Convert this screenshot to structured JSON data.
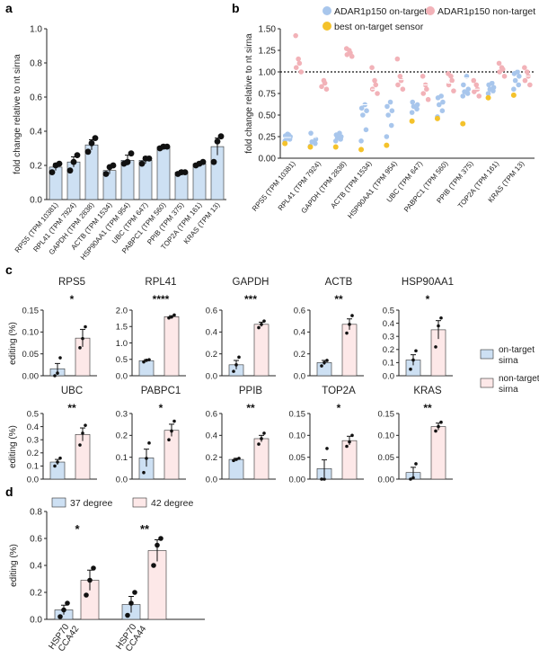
{
  "panels": {
    "a": "a",
    "b": "b",
    "c": "c",
    "d": "d"
  },
  "colors": {
    "on": "#cde0f3",
    "on_edge": "#303030",
    "non": "#fde8e8",
    "dot_on": "#a8c6ec",
    "dot_non": "#f2b2b8",
    "dot_best": "#f4c22b",
    "dot": "#111111",
    "axis": "#222222"
  },
  "chart_data": [
    {
      "id": "a",
      "type": "bar",
      "ylabel": "fold change relative to nt sirna",
      "ylim": [
        0,
        1.0
      ],
      "yticks": [
        0,
        0.2,
        0.4,
        0.6,
        0.8,
        1.0
      ],
      "ytick_labels": [
        "0.0",
        "0.2",
        "0.4",
        "0.6",
        "0.8",
        "1.0"
      ],
      "categories": [
        "RPS5 (TPM 10381)",
        "RPL41 (TPM 7924)",
        "GAPDH (TPM 2838)",
        "ACTB (TPM 1534)",
        "HSP90AA1 (TPM 954)",
        "UBC (TPM 647)",
        "PABPC1 (TPM 560)",
        "PPIB (TPM 375)",
        "TOP2A (TPM 161)",
        "KRAS (TPM 13)"
      ],
      "values": [
        0.19,
        0.22,
        0.32,
        0.17,
        0.23,
        0.23,
        0.31,
        0.16,
        0.21,
        0.31
      ],
      "errors": [
        0.02,
        0.03,
        0.03,
        0.02,
        0.03,
        0.02,
        0.01,
        0.01,
        0.01,
        0.05
      ],
      "points": [
        [
          0.16,
          0.2,
          0.21
        ],
        [
          0.17,
          0.22,
          0.26
        ],
        [
          0.28,
          0.33,
          0.36
        ],
        [
          0.15,
          0.19,
          0.2
        ],
        [
          0.21,
          0.22,
          0.27
        ],
        [
          0.21,
          0.24,
          0.24
        ],
        [
          0.3,
          0.31,
          0.31
        ],
        [
          0.15,
          0.16,
          0.16
        ],
        [
          0.2,
          0.21,
          0.22
        ],
        [
          0.22,
          0.34,
          0.37
        ]
      ]
    },
    {
      "id": "b",
      "type": "scatter",
      "ylabel": "fold change relative to nt sirna",
      "ylim": [
        0,
        1.5
      ],
      "yticks": [
        0,
        0.25,
        0.5,
        0.75,
        1.0,
        1.25,
        1.5
      ],
      "ytick_labels": [
        "0.00",
        "0.25",
        "0.50",
        "0.75",
        "1.00",
        "1.25",
        "1.50"
      ],
      "reference_line": 1.0,
      "categories": [
        "RPS5 (TPM 10381)",
        "RPL41 (TPM 7924)",
        "GAPDH (TPM 2838)",
        "ACTB (TPM 1534)",
        "HSP90AA1 (TPM 954)",
        "UBC (TPM 647)",
        "PABPC1 (TPM 560)",
        "PPIB (TPM 375)",
        "TOP2A (TPM 161)",
        "KRAS (TPM 13)"
      ],
      "legend": [
        "ADAR1p150 on-target",
        "ADAR1p150 non-target",
        "best on-target sensor"
      ],
      "series": [
        {
          "name": "ADAR1p150 on-target",
          "values": [
            [
              0.2,
              0.22,
              0.24,
              0.25,
              0.26,
              0.27,
              0.28
            ],
            [
              0.14,
              0.17,
              0.19,
              0.22,
              0.29
            ],
            [
              0.2,
              0.22,
              0.24,
              0.25,
              0.27,
              0.29
            ],
            [
              0.2,
              0.33,
              0.5,
              0.55,
              0.58,
              0.62
            ],
            [
              0.25,
              0.38,
              0.5,
              0.55,
              0.6,
              0.65
            ],
            [
              0.53,
              0.57,
              0.6,
              0.62,
              0.65
            ],
            [
              0.48,
              0.55,
              0.62,
              0.65,
              0.7,
              0.72
            ],
            [
              0.72,
              0.75,
              0.77,
              0.8,
              0.85,
              0.95
            ],
            [
              0.75,
              0.78,
              0.8,
              0.82,
              0.85,
              0.87
            ],
            [
              0.8,
              0.85,
              0.9,
              0.95,
              0.98,
              1.0
            ]
          ]
        },
        {
          "name": "ADAR1p150 non-target",
          "values": [
            [
              1.0,
              1.05,
              1.1,
              1.15,
              1.42
            ],
            [
              0.8,
              0.83,
              0.87,
              0.9
            ],
            [
              1.18,
              1.2,
              1.22,
              1.25,
              1.27
            ],
            [
              0.75,
              0.8,
              0.85,
              0.9,
              1.05
            ],
            [
              0.8,
              0.85,
              0.9,
              0.95,
              1.15
            ],
            [
              0.68,
              0.75,
              0.8,
              0.85,
              0.95
            ],
            [
              0.78,
              0.85,
              0.9,
              0.95,
              0.98
            ],
            [
              0.72,
              0.77,
              0.8,
              0.85,
              0.9
            ],
            [
              0.95,
              1.0,
              1.03,
              1.05,
              1.1
            ],
            [
              0.85,
              0.9,
              0.95,
              1.0,
              1.05
            ]
          ]
        },
        {
          "name": "best on-target sensor",
          "values": [
            0.17,
            0.13,
            0.13,
            0.1,
            0.15,
            0.43,
            0.46,
            0.4,
            0.7,
            0.73
          ]
        }
      ],
      "group_means": [
        0.24,
        0.2,
        0.24,
        0.46,
        0.49,
        0.6,
        0.62,
        0.8,
        0.81,
        0.91,
        1.12,
        0.85,
        1.22,
        0.87,
        0.93,
        0.8,
        0.9,
        0.81,
        1.03,
        0.95
      ]
    },
    {
      "id": "c",
      "type": "bar",
      "legend": [
        "on-target sirna",
        "non-target sirna"
      ],
      "ylabel": "editing (%)",
      "subplots": [
        {
          "title": "RPS5",
          "sig": "*",
          "ylim": [
            0,
            0.15
          ],
          "yticks": [
            0,
            0.05,
            0.1,
            0.15
          ],
          "ytick_labels": [
            "0.00",
            "0.05",
            "0.10",
            "0.15"
          ],
          "values": [
            0.016,
            0.086
          ],
          "errors": [
            0.012,
            0.02
          ],
          "points": [
            [
              0.0,
              0.006,
              0.041
            ],
            [
              0.064,
              0.085,
              0.112
            ]
          ]
        },
        {
          "title": "RPL41",
          "sig": "****",
          "ylim": [
            0,
            2.0
          ],
          "yticks": [
            0,
            0.5,
            1.0,
            1.5,
            2.0
          ],
          "ytick_labels": [
            "0.0",
            "0.5",
            "1.0",
            "1.5",
            "2.0"
          ],
          "values": [
            0.46,
            1.8
          ],
          "errors": [
            0.03,
            0.03
          ],
          "points": [
            [
              0.42,
              0.47,
              0.49
            ],
            [
              1.76,
              1.79,
              1.85
            ]
          ]
        },
        {
          "title": "GAPDH",
          "sig": "***",
          "ylim": [
            0,
            0.6
          ],
          "yticks": [
            0,
            0.2,
            0.4,
            0.6
          ],
          "ytick_labels": [
            "0.0",
            "0.2",
            "0.4",
            "0.6"
          ],
          "values": [
            0.1,
            0.47
          ],
          "errors": [
            0.04,
            0.02
          ],
          "points": [
            [
              0.04,
              0.1,
              0.17
            ],
            [
              0.44,
              0.47,
              0.5
            ]
          ]
        },
        {
          "title": "ACTB",
          "sig": "**",
          "ylim": [
            0,
            0.6
          ],
          "yticks": [
            0,
            0.2,
            0.4,
            0.6
          ],
          "ytick_labels": [
            "0.0",
            "0.2",
            "0.4",
            "0.6"
          ],
          "values": [
            0.12,
            0.47
          ],
          "errors": [
            0.02,
            0.05
          ],
          "points": [
            [
              0.09,
              0.12,
              0.14
            ],
            [
              0.39,
              0.47,
              0.55
            ]
          ]
        },
        {
          "title": "HSP90AA1",
          "sig": "*",
          "ylim": [
            0,
            0.5
          ],
          "yticks": [
            0,
            0.1,
            0.2,
            0.3,
            0.4,
            0.5
          ],
          "ytick_labels": [
            "0.0",
            "0.1",
            "0.2",
            "0.3",
            "0.4",
            "0.5"
          ],
          "values": [
            0.12,
            0.35
          ],
          "errors": [
            0.04,
            0.07
          ],
          "points": [
            [
              0.05,
              0.12,
              0.19
            ],
            [
              0.22,
              0.38,
              0.44
            ]
          ]
        },
        {
          "title": "UBC",
          "sig": "**",
          "ylim": [
            0,
            0.5
          ],
          "yticks": [
            0,
            0.1,
            0.2,
            0.3,
            0.4,
            0.5
          ],
          "ytick_labels": [
            "0.0",
            "0.1",
            "0.2",
            "0.3",
            "0.4",
            "0.5"
          ],
          "values": [
            0.13,
            0.34
          ],
          "errors": [
            0.02,
            0.05
          ],
          "points": [
            [
              0.1,
              0.13,
              0.16
            ],
            [
              0.26,
              0.35,
              0.41
            ]
          ]
        },
        {
          "title": "PABPC1",
          "sig": "*",
          "ylim": [
            0,
            0.3
          ],
          "yticks": [
            0,
            0.1,
            0.2,
            0.3
          ],
          "ytick_labels": [
            "0.0",
            "0.1",
            "0.2",
            "0.3"
          ],
          "values": [
            0.097,
            0.223
          ],
          "errors": [
            0.04,
            0.028
          ],
          "points": [
            [
              0.03,
              0.095,
              0.165
            ],
            [
              0.18,
              0.22,
              0.265
            ]
          ]
        },
        {
          "title": "PPIB",
          "sig": "**",
          "ylim": [
            0,
            0.6
          ],
          "yticks": [
            0,
            0.2,
            0.4,
            0.6
          ],
          "ytick_labels": [
            "0.0",
            "0.2",
            "0.4",
            "0.6"
          ],
          "values": [
            0.18,
            0.37
          ],
          "errors": [
            0.01,
            0.03
          ],
          "points": [
            [
              0.17,
              0.18,
              0.19
            ],
            [
              0.32,
              0.37,
              0.42
            ]
          ]
        },
        {
          "title": "TOP2A",
          "sig": "*",
          "ylim": [
            0,
            0.15
          ],
          "yticks": [
            0,
            0.05,
            0.1,
            0.15
          ],
          "ytick_labels": [
            "0.00",
            "0.05",
            "0.10",
            "0.15"
          ],
          "values": [
            0.024,
            0.088
          ],
          "errors": [
            0.02,
            0.01
          ],
          "points": [
            [
              0.0,
              0.0,
              0.07
            ],
            [
              0.075,
              0.085,
              0.1
            ]
          ]
        },
        {
          "title": "KRAS",
          "sig": "**",
          "ylim": [
            0,
            0.15
          ],
          "yticks": [
            0,
            0.05,
            0.1,
            0.15
          ],
          "ytick_labels": [
            "0.00",
            "0.05",
            "0.10",
            "0.15"
          ],
          "values": [
            0.015,
            0.12
          ],
          "errors": [
            0.012,
            0.008
          ],
          "points": [
            [
              0.0,
              0.003,
              0.035
            ],
            [
              0.11,
              0.12,
              0.13
            ]
          ]
        }
      ]
    },
    {
      "id": "d",
      "type": "bar",
      "ylabel": "editing (%)",
      "ylim": [
        0,
        0.8
      ],
      "yticks": [
        0,
        0.2,
        0.4,
        0.6,
        0.8
      ],
      "ytick_labels": [
        "0.0",
        "0.2",
        "0.4",
        "0.6",
        "0.8"
      ],
      "legend": [
        "37 degree",
        "42 degree"
      ],
      "groups": [
        {
          "label": [
            "HSP70",
            "CCA42"
          ],
          "sig": "*",
          "values": [
            0.07,
            0.29
          ],
          "errors": [
            0.035,
            0.075
          ],
          "points": [
            [
              0.02,
              0.07,
              0.12
            ],
            [
              0.18,
              0.29,
              0.38
            ]
          ]
        },
        {
          "label": [
            "HSP70",
            "CCA44"
          ],
          "sig": "**",
          "values": [
            0.11,
            0.51
          ],
          "errors": [
            0.06,
            0.08
          ],
          "points": [
            [
              0.03,
              0.12,
              0.2
            ],
            [
              0.4,
              0.55,
              0.6
            ]
          ]
        }
      ]
    }
  ]
}
